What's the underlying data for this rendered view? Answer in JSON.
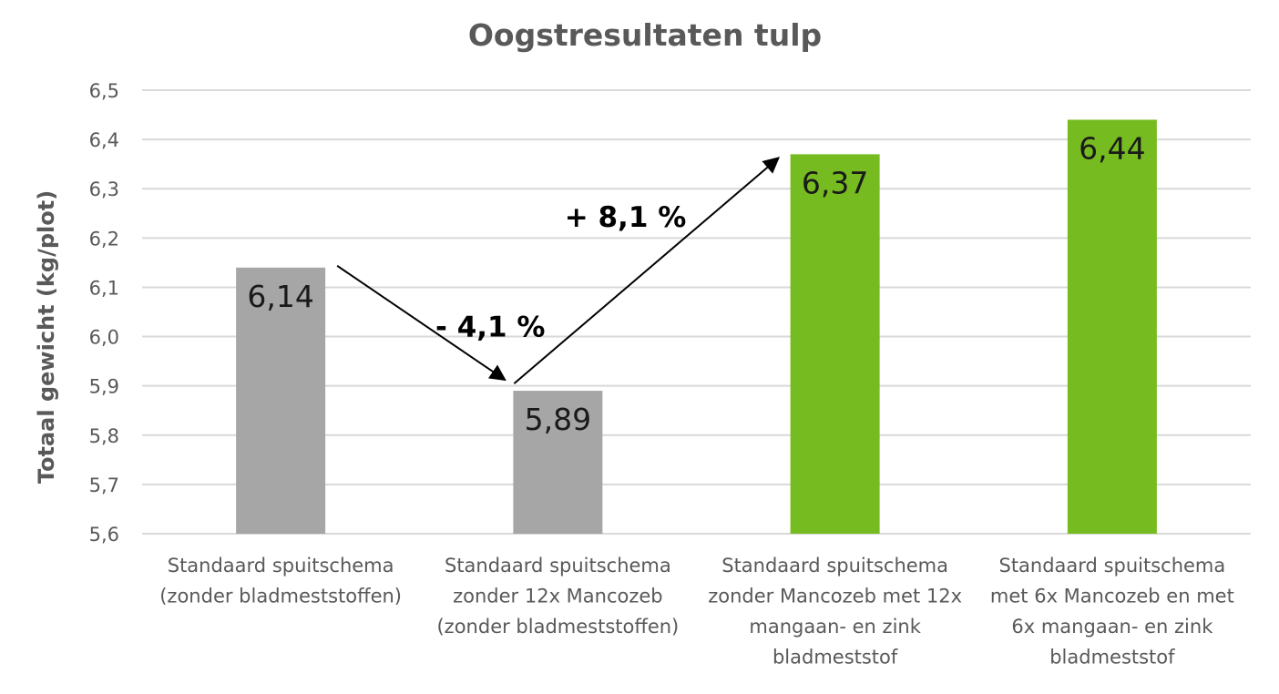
{
  "chart_data": {
    "type": "bar",
    "title": "Oogstresultaten tulp",
    "ylabel": "Totaal gewicht (kg/plot)",
    "xlabel": "",
    "ylim": [
      5.6,
      6.5
    ],
    "yticks": [
      "5,6",
      "5,7",
      "5,8",
      "5,9",
      "6,0",
      "6,1",
      "6,2",
      "6,3",
      "6,4",
      "6,5"
    ],
    "grid": true,
    "categories": [
      [
        "Standaard spuitschema",
        "(zonder bladmeststoffen)"
      ],
      [
        "Standaard spuitschema",
        "zonder 12x Mancozeb",
        "(zonder bladmeststoffen)"
      ],
      [
        "Standaard spuitschema",
        "zonder Mancozeb met 12x",
        "mangaan- en zink",
        "bladmeststof"
      ],
      [
        "Standaard spuitschema",
        "met 6x Mancozeb en met",
        "6x mangaan- en zink",
        "bladmeststof"
      ]
    ],
    "values": [
      6.14,
      5.89,
      6.37,
      6.44
    ],
    "value_labels": [
      "6,14",
      "5,89",
      "6,37",
      "6,44"
    ],
    "bar_colors": [
      "#a6a6a6",
      "#a6a6a6",
      "#76bc21",
      "#76bc21"
    ],
    "annotations": [
      {
        "text": "- 4,1 %",
        "from_bar": 0,
        "to_bar": 1
      },
      {
        "text": "+ 8,1 %",
        "from_bar": 1,
        "to_bar": 2
      }
    ]
  },
  "colors": {
    "grid": "#d9d9d9",
    "text": "#595959",
    "arrow": "#000000"
  }
}
